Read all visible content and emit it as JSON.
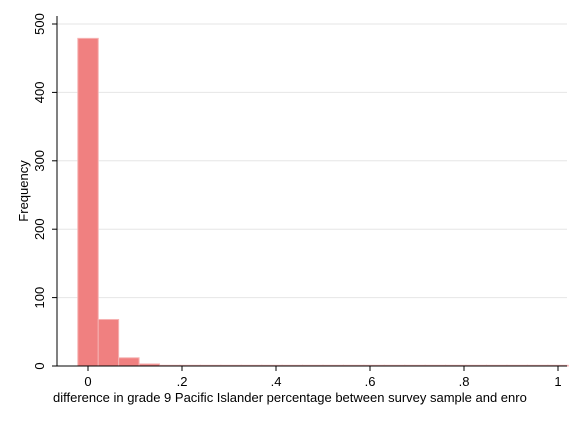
{
  "chart_data": {
    "type": "bar",
    "subtype": "histogram",
    "title": "",
    "xlabel": "difference in grade 9 Pacific Islander percentage between survey sample and enro",
    "ylabel": "Frequency",
    "xlim": [
      -0.05,
      1.02
    ],
    "ylim": [
      0,
      510
    ],
    "x_ticks": [
      0,
      0.2,
      0.4,
      0.6,
      0.8,
      1
    ],
    "x_tick_labels": [
      "0",
      ".2",
      ".4",
      ".6",
      ".8",
      "1"
    ],
    "y_ticks": [
      0,
      100,
      200,
      300,
      400,
      500
    ],
    "y_tick_labels": [
      "0",
      "100",
      "200",
      "300",
      "400",
      "500"
    ],
    "grid": true,
    "bar_color": "#f08080",
    "bar_edge_color": "#f6b3b3",
    "bin_width": 0.0435,
    "bins": [
      {
        "start": -0.0217,
        "value": 479
      },
      {
        "start": 0.0217,
        "value": 68
      },
      {
        "start": 0.0652,
        "value": 12
      },
      {
        "start": 0.1087,
        "value": 3
      },
      {
        "start": 0.1522,
        "value": 1
      },
      {
        "start": 0.1957,
        "value": 1
      },
      {
        "start": 0.2391,
        "value": 1
      },
      {
        "start": 0.2826,
        "value": 1
      },
      {
        "start": 0.3261,
        "value": 1
      },
      {
        "start": 0.3696,
        "value": 1
      },
      {
        "start": 0.413,
        "value": 1
      },
      {
        "start": 0.4565,
        "value": 1
      },
      {
        "start": 0.5,
        "value": 1
      },
      {
        "start": 0.5435,
        "value": 1
      },
      {
        "start": 0.587,
        "value": 1
      },
      {
        "start": 0.6304,
        "value": 1
      },
      {
        "start": 0.6739,
        "value": 1
      },
      {
        "start": 0.7174,
        "value": 1
      },
      {
        "start": 0.7609,
        "value": 1
      },
      {
        "start": 0.8043,
        "value": 1
      },
      {
        "start": 0.8478,
        "value": 1
      },
      {
        "start": 0.8913,
        "value": 1
      },
      {
        "start": 0.9348,
        "value": 1
      },
      {
        "start": 0.9783,
        "value": 1
      }
    ]
  }
}
